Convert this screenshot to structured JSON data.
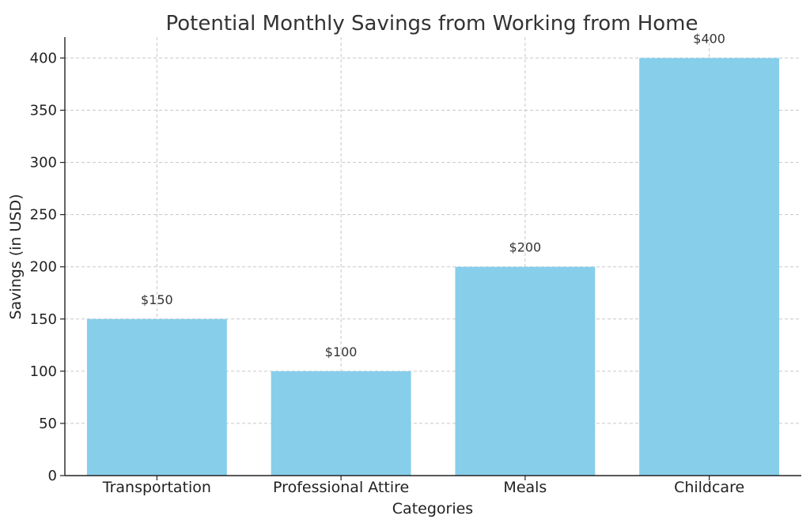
{
  "chart_data": {
    "type": "bar",
    "title": "Potential Monthly Savings from Working from Home",
    "xlabel": "Categories",
    "ylabel": "Savings (in USD)",
    "categories": [
      "Transportation",
      "Professional Attire",
      "Meals",
      "Childcare"
    ],
    "values": [
      150,
      100,
      200,
      400
    ],
    "data_labels": [
      "$150",
      "$100",
      "$200",
      "$400"
    ],
    "ylim": [
      0,
      420
    ],
    "yticks": [
      0,
      50,
      100,
      150,
      200,
      250,
      300,
      350,
      400
    ],
    "grid": true,
    "bar_color": "#87CEEB"
  }
}
